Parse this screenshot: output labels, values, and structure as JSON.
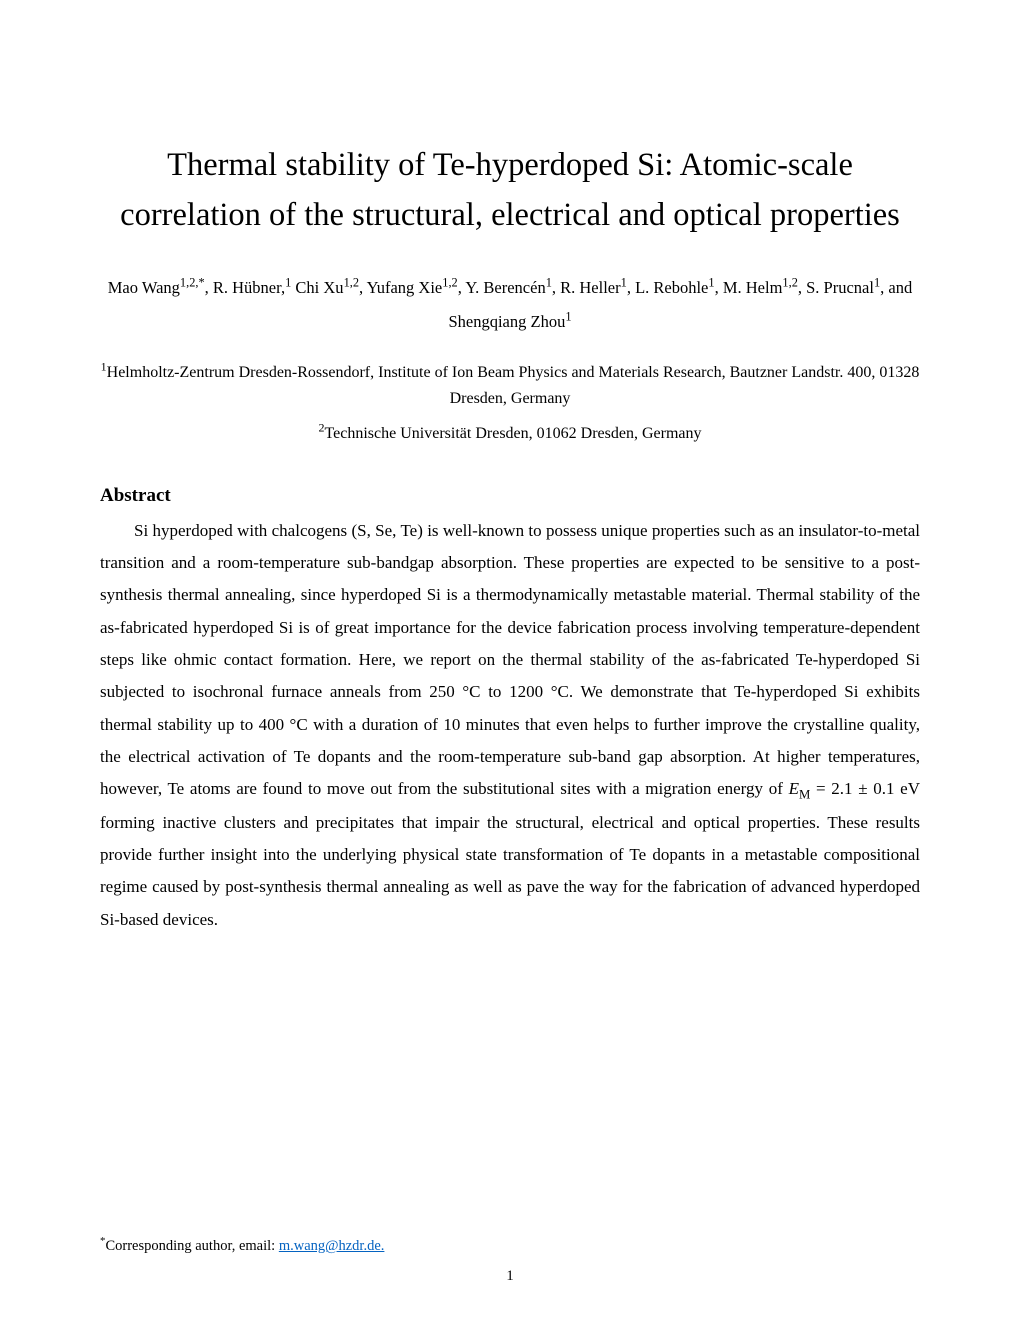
{
  "title": "Thermal stability of Te-hyperdoped Si: Atomic-scale correlation of the structural, electrical and optical properties",
  "authors_html": "Mao Wang<sup>1,2,*</sup>, R. Hübner,<sup>1</sup> Chi Xu<sup>1,2</sup>, Yufang Xie<sup>1,2</sup>, Y. Berencén<sup>1</sup>, R. Heller<sup>1</sup>, L. Rebohle<sup>1</sup>, M. Helm<sup>1,2</sup>, S. Prucnal<sup>1</sup>, and Shengqiang Zhou<sup>1</sup>",
  "affiliations": [
    "<sup>1</sup>Helmholtz-Zentrum Dresden-Rossendorf, Institute of Ion Beam Physics and Materials Research, Bautzner Landstr. 400, 01328 Dresden, Germany",
    "<sup>2</sup>Technische Universität Dresden, 01062 Dresden, Germany"
  ],
  "abstract_heading": "Abstract",
  "abstract_html": "Si hyperdoped with chalcogens (S, Se, Te) is well-known to possess unique properties such as an insulator-to-metal transition and a room-temperature sub-bandgap absorption. These properties are expected to be sensitive to a post-synthesis thermal annealing, since hyperdoped Si is a thermodynamically metastable material. Thermal stability of the as-fabricated hyperdoped Si is of great importance for the device fabrication process involving temperature-dependent steps like ohmic contact formation. Here, we report on the thermal stability of the as-fabricated Te-hyperdoped Si subjected to isochronal furnace anneals from 250 °C to 1200 °C. We demonstrate that Te-hyperdoped Si exhibits thermal stability up to 400 °C with a duration of 10 minutes that even helps to further improve the crystalline quality, the electrical activation of Te dopants and the room-temperature sub-band gap absorption. At higher temperatures, however, Te atoms are found to move out from the substitutional sites with a migration energy of <span class=\"ital\">E</span><span class=\"sub\">M</span> = 2.1 ± 0.1 eV forming inactive clusters and precipitates that impair the structural, electrical and optical properties. These results provide further insight into the underlying physical state transformation of Te dopants in a metastable compositional regime caused by post-synthesis thermal annealing as well as pave the way for the fabrication of advanced hyperdoped Si-based devices.",
  "footnote_label": "Corresponding author, email: ",
  "footnote_marker": "*",
  "footnote_email": "m.wang@hzdr.de.",
  "page_number": "1",
  "colors": {
    "background": "#ffffff",
    "text": "#000000",
    "link": "#0563c1"
  }
}
